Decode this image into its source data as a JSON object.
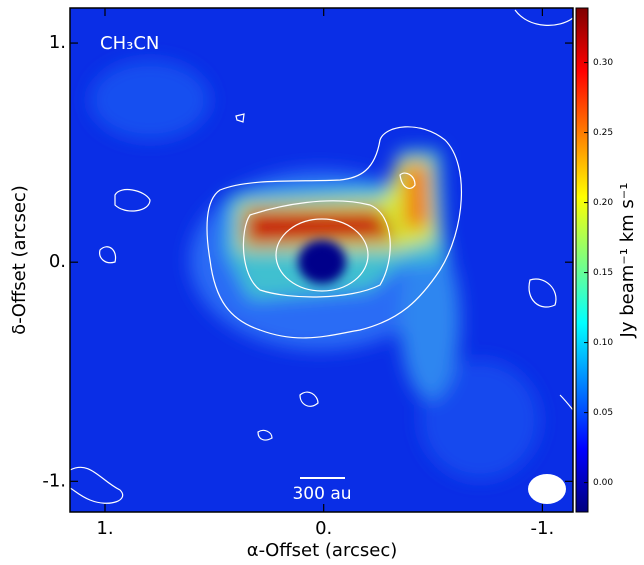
{
  "chart_data": {
    "type": "image",
    "annotation": "CH₃CN",
    "scale_bar_label": "300 au",
    "xlabel": "α-Offset (arcsec)",
    "ylabel": "δ-Offset (arcsec)",
    "colorbar_label": "Jy beam⁻¹ km s⁻¹",
    "xlim": [
      1.16,
      -1.14
    ],
    "ylim": [
      -1.14,
      1.16
    ],
    "xticks": [
      {
        "value": 1,
        "label": "1."
      },
      {
        "value": 0,
        "label": "0."
      },
      {
        "value": -1,
        "label": "-1."
      }
    ],
    "yticks": [
      {
        "value": -1,
        "label": "-1."
      },
      {
        "value": 0,
        "label": "0."
      },
      {
        "value": 1,
        "label": "1."
      }
    ],
    "clim": [
      -0.021,
      0.339
    ],
    "cticks": [
      {
        "value": 0,
        "label": "0.00"
      },
      {
        "value": 0.05,
        "label": "0.05"
      },
      {
        "value": 0.1,
        "label": "0.10"
      },
      {
        "value": 0.15,
        "label": "0.15"
      },
      {
        "value": 0.2,
        "label": "0.20"
      },
      {
        "value": 0.25,
        "label": "0.25"
      },
      {
        "value": 0.3,
        "label": "0.30"
      }
    ],
    "colormap": [
      "#00007f",
      "#0000ff",
      "#007fff",
      "#00ffff",
      "#7fff7f",
      "#ffff00",
      "#ff7f00",
      "#ff0000",
      "#7f0000"
    ]
  }
}
